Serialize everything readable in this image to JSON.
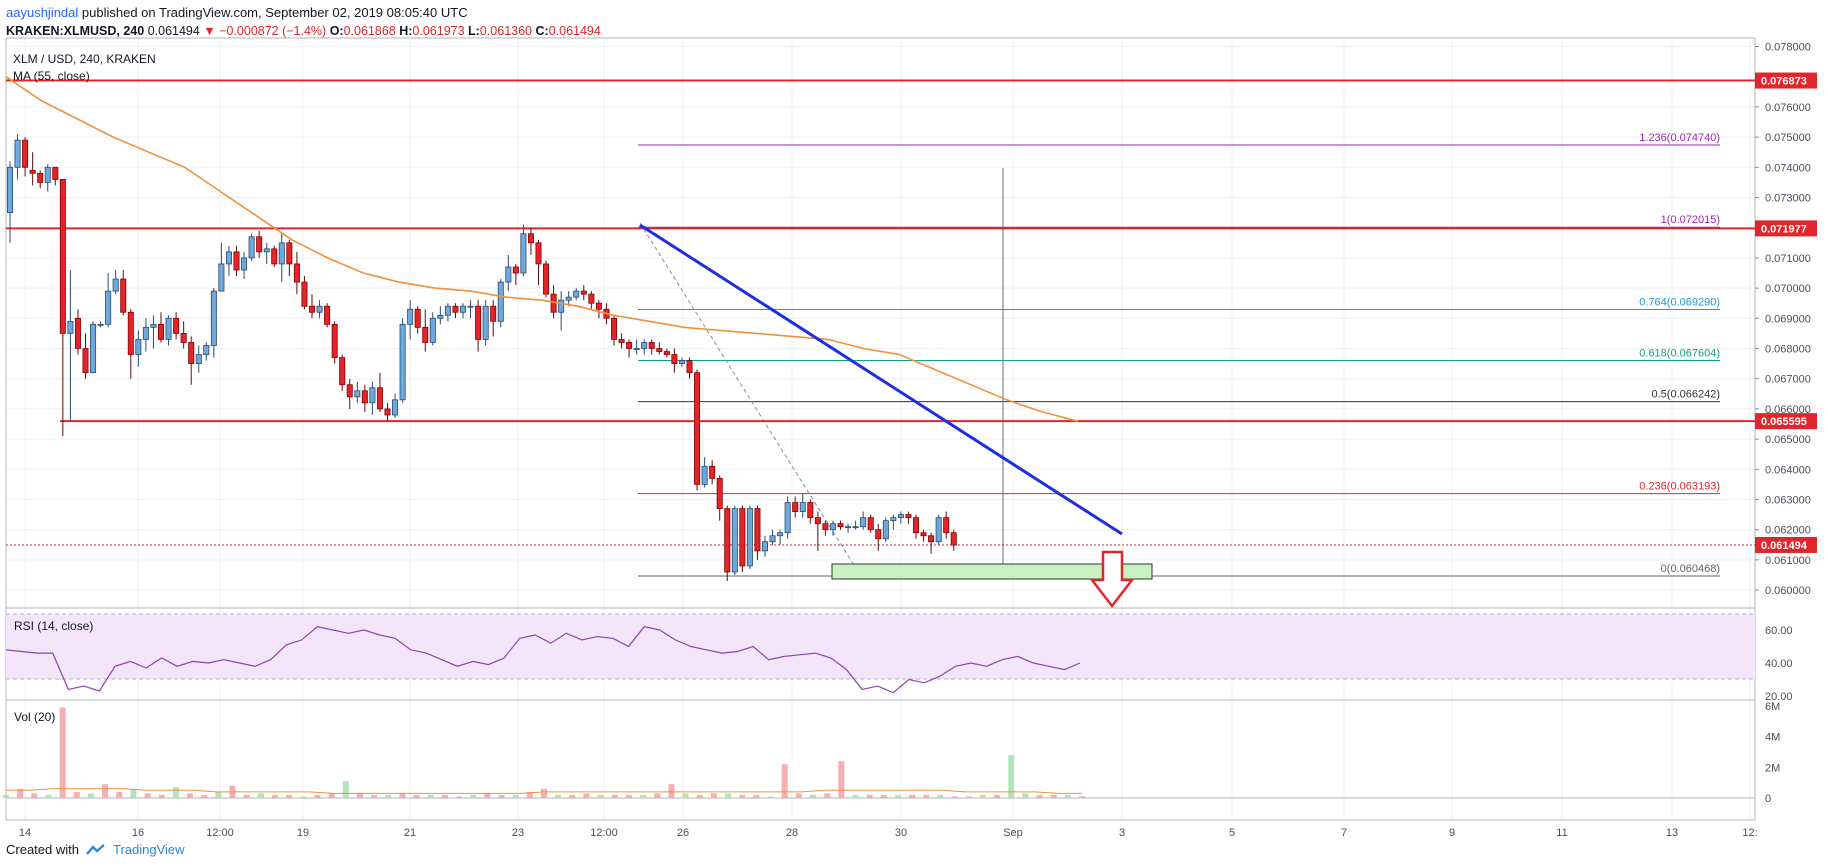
{
  "header": {
    "author": "aayushjindal",
    "published": "published on TradingView.com, September 02, 2019 08:05:40 UTC",
    "symbol": "KRAKEN:XLMUSD, 240",
    "last": "0.061494",
    "change": "−0.000872 (−1.4%)",
    "o_label": "O:",
    "o_val": "0.061868",
    "h_label": "H:",
    "h_val": "0.061973",
    "l_label": "L:",
    "l_val": "0.061360",
    "c_label": "C:",
    "c_val": "0.061494"
  },
  "footer": {
    "created_with": "Created with",
    "brand": "TradingView"
  },
  "colors": {
    "up": "#6fa8dc",
    "up_border": "#2b4a6f",
    "down": "#e0262b",
    "down_border": "#8b0000",
    "ma": "#f0913a",
    "trend": "#1d2fe0",
    "resistance": "#e0262b",
    "rsi_line": "#8e44ad",
    "rsi_band": "#f3e6fb",
    "support_box": "#c8f0c0",
    "fib_1236": "#9c27b0",
    "fib_1": "#9c27b0",
    "fib_0764": "#1e9bd7",
    "fib_0618": "#16a085",
    "fib_05": "#333333",
    "fib_0236": "#e0262b",
    "fib_0": "#666666"
  },
  "chart_data": {
    "type": "candlestick",
    "title": "XLM / USD, 240, KRAKEN",
    "ma_label": "MA (55, close)",
    "y_ticks": [
      "0.078000",
      "0.076000",
      "0.075000",
      "0.074000",
      "0.073000",
      "0.071000",
      "0.070000",
      "0.069000",
      "0.068000",
      "0.067000",
      "0.066000",
      "0.065000",
      "0.064000",
      "0.063000",
      "0.062000",
      "0.061000",
      "0.060000"
    ],
    "x_ticks": [
      "14",
      "16",
      "12:00",
      "19",
      "21",
      "23",
      "12:00",
      "26",
      "28",
      "30",
      "Sep",
      "3",
      "5",
      "7",
      "9",
      "11",
      "13",
      "12:"
    ],
    "price_flags": [
      {
        "label": "0.076873",
        "price": 0.076873,
        "color": "#e0262b"
      },
      {
        "label": "0.071977",
        "price": 0.071977,
        "color": "#e0262b"
      },
      {
        "label": "0.065595",
        "price": 0.065595,
        "color": "#e0262b"
      },
      {
        "label": "0.061494",
        "price": 0.061494,
        "color": "#e0262b"
      }
    ],
    "fib_levels": [
      {
        "label": "1.236(0.074740)",
        "price": 0.07474,
        "key": "fib_1236"
      },
      {
        "label": "1(0.072015)",
        "price": 0.072015,
        "key": "fib_1"
      },
      {
        "label": "0.764(0.069290)",
        "price": 0.06929,
        "key": "fib_0764"
      },
      {
        "label": "0.618(0.067604)",
        "price": 0.067604,
        "key": "fib_0618"
      },
      {
        "label": "0.5(0.066242)",
        "price": 0.066242,
        "key": "fib_05"
      },
      {
        "label": "0.236(0.063193)",
        "price": 0.063193,
        "key": "fib_0236"
      },
      {
        "label": "0(0.060468)",
        "price": 0.060468,
        "key": "fib_0"
      }
    ],
    "trendline": {
      "from": [
        21,
        0.072
      ],
      "to": [
        38,
        0.0619
      ]
    },
    "rsi": {
      "label": "RSI (14, close)",
      "ticks": [
        "60.00",
        "40.00",
        "20.00"
      ],
      "upper": 70,
      "lower": 30,
      "values": [
        48,
        47,
        46,
        46,
        24,
        26,
        23,
        38,
        41,
        37,
        43,
        38,
        41,
        40,
        42,
        40,
        38,
        42,
        51,
        54,
        62,
        60,
        58,
        60,
        57,
        55,
        48,
        46,
        42,
        38,
        41,
        39,
        43,
        55,
        57,
        52,
        58,
        54,
        56,
        55,
        50,
        62,
        60,
        54,
        50,
        48,
        46,
        47,
        50,
        42,
        44,
        45,
        46,
        43,
        36,
        24,
        26,
        22,
        30,
        28,
        32,
        38,
        40,
        38,
        42,
        44,
        40,
        38,
        36,
        40
      ]
    },
    "volume": {
      "label": "Vol (20)",
      "ticks": [
        "6M",
        "4M",
        "2M",
        "0"
      ],
      "values": [
        0.2,
        0.6,
        0.3,
        0.2,
        5.9,
        0.4,
        0.3,
        0.9,
        0.4,
        0.6,
        0.3,
        0.2,
        0.7,
        0.3,
        0.2,
        0.4,
        0.8,
        0.2,
        0.3,
        0.2,
        0.2,
        0.1,
        0.2,
        0.3,
        1.1,
        0.3,
        0.2,
        0.2,
        0.3,
        0.2,
        0.2,
        0.2,
        0.1,
        0.2,
        0.3,
        0.2,
        0.2,
        0.4,
        0.6,
        0.2,
        0.2,
        0.3,
        0.2,
        0.2,
        0.2,
        0.2,
        0.3,
        0.9,
        0.3,
        0.2,
        0.3,
        0.3,
        0.2,
        0.2,
        0.1,
        2.2,
        0.3,
        0.2,
        0.3,
        2.4,
        0.2,
        0.2,
        0.2,
        0.2,
        0.2,
        0.2,
        0.2,
        0.1,
        0.1,
        0.2,
        0.2,
        2.8,
        0.3,
        0.2,
        0.2,
        0.2,
        0.1
      ],
      "ma": [
        0.5,
        0.5,
        0.6,
        0.6,
        0.6,
        0.6,
        0.5,
        0.5,
        0.5,
        0.4,
        0.4,
        0.4,
        0.4,
        0.4,
        0.3,
        0.3,
        0.3,
        0.3,
        0.3,
        0.3,
        0.3,
        0.3,
        0.3,
        0.4,
        0.4,
        0.4,
        0.4,
        0.4,
        0.4,
        0.4,
        0.4,
        0.4,
        0.4,
        0.4,
        0.4,
        0.5,
        0.5,
        0.5,
        0.5,
        0.5,
        0.5,
        0.4,
        0.4,
        0.4,
        0.4,
        0.3,
        0.3
      ]
    },
    "candles": [
      [
        0.0725,
        0.0742,
        0.0715,
        0.074
      ],
      [
        0.074,
        0.0751,
        0.0736,
        0.0749
      ],
      [
        0.0749,
        0.075,
        0.0737,
        0.074
      ],
      [
        0.0739,
        0.0745,
        0.0734,
        0.0738
      ],
      [
        0.0738,
        0.0739,
        0.0733,
        0.0735
      ],
      [
        0.0735,
        0.0741,
        0.0732,
        0.074
      ],
      [
        0.074,
        0.074,
        0.0734,
        0.0736
      ],
      [
        0.0736,
        0.0736,
        0.0651,
        0.0685
      ],
      [
        0.0685,
        0.0706,
        0.0656,
        0.0689
      ],
      [
        0.069,
        0.0693,
        0.0678,
        0.068
      ],
      [
        0.068,
        0.0685,
        0.067,
        0.0672
      ],
      [
        0.0672,
        0.0689,
        0.0672,
        0.0688
      ],
      [
        0.0688,
        0.0689,
        0.0687,
        0.0688
      ],
      [
        0.0688,
        0.0705,
        0.0687,
        0.0699
      ],
      [
        0.0699,
        0.0706,
        0.0698,
        0.0703
      ],
      [
        0.0703,
        0.0706,
        0.0691,
        0.0692
      ],
      [
        0.0692,
        0.0693,
        0.067,
        0.0678
      ],
      [
        0.0678,
        0.0686,
        0.0674,
        0.0683
      ],
      [
        0.0683,
        0.069,
        0.0679,
        0.0687
      ],
      [
        0.0687,
        0.0691,
        0.068,
        0.0688
      ],
      [
        0.0688,
        0.0692,
        0.0682,
        0.0683
      ],
      [
        0.0683,
        0.0691,
        0.0681,
        0.069
      ],
      [
        0.069,
        0.0692,
        0.0683,
        0.0685
      ],
      [
        0.0685,
        0.0689,
        0.068,
        0.0682
      ],
      [
        0.0682,
        0.0684,
        0.0668,
        0.0675
      ],
      [
        0.0675,
        0.0681,
        0.0672,
        0.0678
      ],
      [
        0.0678,
        0.0682,
        0.0676,
        0.0681
      ],
      [
        0.0681,
        0.07,
        0.0677,
        0.0699
      ],
      [
        0.0699,
        0.0715,
        0.0699,
        0.0708
      ],
      [
        0.0708,
        0.0714,
        0.0704,
        0.0712
      ],
      [
        0.0712,
        0.0714,
        0.0704,
        0.0706
      ],
      [
        0.0706,
        0.0712,
        0.0703,
        0.071
      ],
      [
        0.071,
        0.0718,
        0.0709,
        0.0717
      ],
      [
        0.0717,
        0.0719,
        0.071,
        0.0712
      ],
      [
        0.0712,
        0.0715,
        0.0708,
        0.0713
      ],
      [
        0.0713,
        0.0714,
        0.0707,
        0.0708
      ],
      [
        0.0708,
        0.0718,
        0.0702,
        0.0715
      ],
      [
        0.0715,
        0.0716,
        0.0704,
        0.0708
      ],
      [
        0.0708,
        0.0712,
        0.0698,
        0.0702
      ],
      [
        0.0702,
        0.0704,
        0.0693,
        0.0694
      ],
      [
        0.0694,
        0.0698,
        0.069,
        0.0692
      ],
      [
        0.0692,
        0.0696,
        0.069,
        0.0694
      ],
      [
        0.0694,
        0.0695,
        0.0687,
        0.0688
      ],
      [
        0.0688,
        0.0689,
        0.0675,
        0.0677
      ],
      [
        0.0677,
        0.0678,
        0.0666,
        0.0668
      ],
      [
        0.0668,
        0.067,
        0.066,
        0.0664
      ],
      [
        0.0664,
        0.0669,
        0.0662,
        0.0666
      ],
      [
        0.0666,
        0.0668,
        0.0659,
        0.0662
      ],
      [
        0.0662,
        0.0669,
        0.0658,
        0.0667
      ],
      [
        0.0667,
        0.0672,
        0.0659,
        0.066
      ],
      [
        0.066,
        0.0662,
        0.0656,
        0.0658
      ],
      [
        0.0658,
        0.0665,
        0.0657,
        0.0663
      ],
      [
        0.0663,
        0.069,
        0.0662,
        0.0688
      ],
      [
        0.0688,
        0.0696,
        0.0683,
        0.0693
      ],
      [
        0.0693,
        0.0694,
        0.0685,
        0.0687
      ],
      [
        0.0687,
        0.0693,
        0.0679,
        0.0682
      ],
      [
        0.0682,
        0.0692,
        0.0681,
        0.069
      ],
      [
        0.069,
        0.0694,
        0.0688,
        0.0691
      ],
      [
        0.0691,
        0.0695,
        0.0689,
        0.0694
      ],
      [
        0.0694,
        0.0695,
        0.069,
        0.0692
      ],
      [
        0.0692,
        0.0695,
        0.069,
        0.0694
      ],
      [
        0.0694,
        0.0696,
        0.069,
        0.0694
      ],
      [
        0.0694,
        0.0696,
        0.0679,
        0.0683
      ],
      [
        0.0683,
        0.0696,
        0.0681,
        0.0694
      ],
      [
        0.0694,
        0.0696,
        0.0684,
        0.0689
      ],
      [
        0.0689,
        0.0703,
        0.0687,
        0.0702
      ],
      [
        0.0702,
        0.0711,
        0.0699,
        0.0707
      ],
      [
        0.0707,
        0.0708,
        0.0701,
        0.0705
      ],
      [
        0.0705,
        0.0721,
        0.0704,
        0.0718
      ],
      [
        0.0718,
        0.072,
        0.0711,
        0.0715
      ],
      [
        0.0715,
        0.0716,
        0.0701,
        0.0708
      ],
      [
        0.0708,
        0.0709,
        0.0697,
        0.0698
      ],
      [
        0.0698,
        0.0701,
        0.069,
        0.0692
      ],
      [
        0.0692,
        0.0699,
        0.0686,
        0.0696
      ],
      [
        0.0696,
        0.0699,
        0.0694,
        0.0697
      ],
      [
        0.0697,
        0.07,
        0.0696,
        0.0699
      ],
      [
        0.0699,
        0.0701,
        0.0696,
        0.0698
      ],
      [
        0.0698,
        0.0699,
        0.0693,
        0.0695
      ],
      [
        0.0695,
        0.0696,
        0.069,
        0.0693
      ],
      [
        0.0693,
        0.0695,
        0.0688,
        0.069
      ],
      [
        0.069,
        0.0691,
        0.0681,
        0.0683
      ],
      [
        0.0683,
        0.0685,
        0.068,
        0.0682
      ],
      [
        0.0682,
        0.0683,
        0.0677,
        0.068
      ],
      [
        0.068,
        0.0683,
        0.0678,
        0.068
      ],
      [
        0.068,
        0.0683,
        0.0678,
        0.0682
      ],
      [
        0.0682,
        0.0683,
        0.0678,
        0.068
      ],
      [
        0.068,
        0.0682,
        0.0678,
        0.0679
      ],
      [
        0.0679,
        0.068,
        0.0677,
        0.0678
      ],
      [
        0.0678,
        0.068,
        0.0672,
        0.0675
      ],
      [
        0.0675,
        0.0677,
        0.0674,
        0.0676
      ],
      [
        0.0676,
        0.0677,
        0.067,
        0.0672
      ],
      [
        0.0672,
        0.0673,
        0.0633,
        0.0635
      ],
      [
        0.0635,
        0.0644,
        0.0634,
        0.0641
      ],
      [
        0.0641,
        0.0643,
        0.0635,
        0.0637
      ],
      [
        0.0637,
        0.0638,
        0.0623,
        0.0627
      ],
      [
        0.0627,
        0.0628,
        0.0603,
        0.0606
      ],
      [
        0.0606,
        0.0628,
        0.0605,
        0.0627
      ],
      [
        0.0627,
        0.0628,
        0.0606,
        0.0608
      ],
      [
        0.0608,
        0.0628,
        0.0607,
        0.0627
      ],
      [
        0.0627,
        0.0628,
        0.061,
        0.0613
      ],
      [
        0.0613,
        0.0618,
        0.0611,
        0.0616
      ],
      [
        0.0616,
        0.062,
        0.0615,
        0.0618
      ],
      [
        0.0618,
        0.062,
        0.0615,
        0.0619
      ],
      [
        0.0619,
        0.0631,
        0.0617,
        0.0629
      ],
      [
        0.0629,
        0.0631,
        0.0624,
        0.0626
      ],
      [
        0.0626,
        0.0632,
        0.0624,
        0.0629
      ],
      [
        0.0629,
        0.063,
        0.0622,
        0.0624
      ],
      [
        0.0624,
        0.0626,
        0.0613,
        0.0622
      ],
      [
        0.0622,
        0.0623,
        0.0618,
        0.062
      ],
      [
        0.062,
        0.0623,
        0.0618,
        0.0622
      ],
      [
        0.0622,
        0.0623,
        0.062,
        0.0621
      ],
      [
        0.0621,
        0.0622,
        0.0619,
        0.0621
      ],
      [
        0.0621,
        0.0623,
        0.062,
        0.0621
      ],
      [
        0.0621,
        0.0626,
        0.062,
        0.0624
      ],
      [
        0.0624,
        0.0625,
        0.0619,
        0.062
      ],
      [
        0.062,
        0.0622,
        0.0613,
        0.0617
      ],
      [
        0.0617,
        0.0624,
        0.0616,
        0.0623
      ],
      [
        0.0623,
        0.0625,
        0.062,
        0.0624
      ],
      [
        0.0624,
        0.0626,
        0.0622,
        0.0625
      ],
      [
        0.0625,
        0.0626,
        0.0622,
        0.0624
      ],
      [
        0.0624,
        0.0625,
        0.0617,
        0.0619
      ],
      [
        0.0619,
        0.062,
        0.0616,
        0.0618
      ],
      [
        0.0618,
        0.0619,
        0.0612,
        0.0616
      ],
      [
        0.0616,
        0.0625,
        0.0615,
        0.0624
      ],
      [
        0.0624,
        0.0626,
        0.0617,
        0.0619
      ],
      [
        0.0619,
        0.062,
        0.0613,
        0.06149
      ]
    ],
    "ma55": [
      0.077,
      0.0762,
      0.0756,
      0.075,
      0.0745,
      0.074,
      0.0732,
      0.0724,
      0.0716,
      0.071,
      0.0705,
      0.0702,
      0.07,
      0.0699,
      0.0697,
      0.0696,
      0.0694,
      0.0691,
      0.0689,
      0.0687,
      0.0686,
      0.0685,
      0.0684,
      0.0683,
      0.068,
      0.0678,
      0.0673,
      0.0668,
      0.0663,
      0.0659,
      0.06559
    ]
  }
}
